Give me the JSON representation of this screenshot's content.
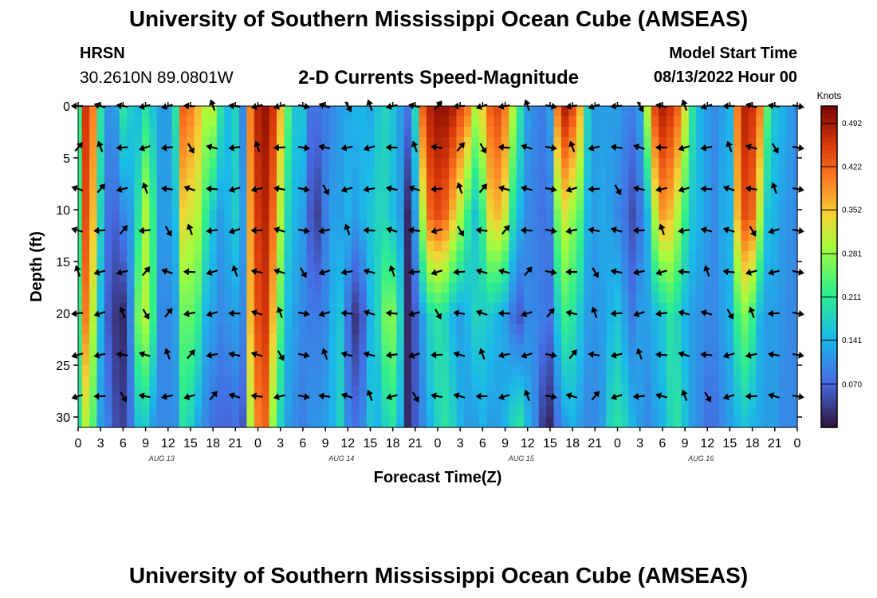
{
  "header": {
    "title": "University of Southern Mississippi Ocean Cube (AMSEAS)",
    "station": "HRSN",
    "coords": "30.2610N  89.0801W",
    "subtitle": "2-D Currents Speed-Magnitude",
    "model_start_label": "Model Start Time",
    "model_start_value": "08/13/2022 Hour 00",
    "footer_title": "University of Southern Mississippi Ocean Cube (AMSEAS)"
  },
  "chart_data": {
    "type": "heatmap",
    "xlabel": "Forecast Time(Z)",
    "ylabel": "Depth (ft)",
    "x_tick_labels": [
      "0",
      "3",
      "6",
      "9",
      "12",
      "15",
      "18",
      "21",
      "0",
      "3",
      "6",
      "9",
      "12",
      "15",
      "18",
      "21",
      "0",
      "3",
      "6",
      "9",
      "12",
      "15",
      "18",
      "21",
      "0",
      "3",
      "6",
      "9",
      "12",
      "15",
      "18",
      "21",
      "0"
    ],
    "x_range_hours": [
      0,
      96
    ],
    "day_labels": [
      {
        "text": "AUG 13",
        "hour": 12
      },
      {
        "text": "AUG 14",
        "hour": 36
      },
      {
        "text": "AUG 15",
        "hour": 60
      },
      {
        "text": "AUG 16",
        "hour": 84
      }
    ],
    "y_ticks": [
      0,
      5,
      10,
      15,
      20,
      25,
      30
    ],
    "y_range_ft": [
      0,
      31
    ],
    "colorbar": {
      "label": "Knots",
      "ticks": [
        "0.492",
        "0.422",
        "0.352",
        "0.281",
        "0.211",
        "0.141",
        "0.070"
      ],
      "range": [
        0,
        0.52
      ]
    },
    "arrow_depths_ft": [
      0,
      4,
      8,
      12,
      16,
      20,
      24,
      28
    ],
    "arrow_hours": [
      0,
      3,
      6,
      9,
      12,
      15,
      18,
      21,
      24,
      27,
      30,
      33,
      36,
      39,
      42,
      45,
      48,
      51,
      54,
      57,
      60,
      63,
      66,
      69,
      72,
      75,
      78,
      81,
      84,
      87,
      90,
      93,
      96
    ],
    "speed_columns_knots": [
      {
        "hour": 0,
        "profile": [
          0.22,
          0.22,
          0.22,
          0.2
        ]
      },
      {
        "hour": 1,
        "profile": [
          0.46,
          0.44,
          0.4,
          0.3
        ]
      },
      {
        "hour": 2,
        "profile": [
          0.4,
          0.36,
          0.3,
          0.24
        ]
      },
      {
        "hour": 3,
        "profile": [
          0.2,
          0.18,
          0.14,
          0.12
        ]
      },
      {
        "hour": 4,
        "profile": [
          0.11,
          0.08,
          0.06,
          0.09
        ]
      },
      {
        "hour": 5,
        "profile": [
          0.12,
          0.07,
          0.03,
          0.05
        ]
      },
      {
        "hour": 6,
        "profile": [
          0.2,
          0.1,
          0.02,
          0.04
        ]
      },
      {
        "hour": 7,
        "profile": [
          0.17,
          0.12,
          0.1,
          0.08
        ]
      },
      {
        "hour": 8,
        "profile": [
          0.15,
          0.2,
          0.26,
          0.16
        ]
      },
      {
        "hour": 9,
        "profile": [
          0.2,
          0.3,
          0.3,
          0.17
        ]
      },
      {
        "hour": 10,
        "profile": [
          0.16,
          0.22,
          0.22,
          0.12
        ]
      },
      {
        "hour": 11,
        "profile": [
          0.12,
          0.12,
          0.1,
          0.1
        ]
      },
      {
        "hour": 12,
        "profile": [
          0.12,
          0.12,
          0.1,
          0.1
        ]
      },
      {
        "hour": 13,
        "profile": [
          0.2,
          0.15,
          0.12,
          0.11
        ]
      },
      {
        "hour": 14,
        "profile": [
          0.42,
          0.34,
          0.25,
          0.2
        ]
      },
      {
        "hour": 15,
        "profile": [
          0.4,
          0.32,
          0.25,
          0.18
        ]
      },
      {
        "hour": 16,
        "profile": [
          0.36,
          0.3,
          0.22,
          0.13
        ]
      },
      {
        "hour": 17,
        "profile": [
          0.3,
          0.22,
          0.14,
          0.1
        ]
      },
      {
        "hour": 18,
        "profile": [
          0.3,
          0.16,
          0.12,
          0.08
        ]
      },
      {
        "hour": 19,
        "profile": [
          0.2,
          0.12,
          0.1,
          0.07
        ]
      },
      {
        "hour": 20,
        "profile": [
          0.15,
          0.14,
          0.11,
          0.07
        ]
      },
      {
        "hour": 21,
        "profile": [
          0.18,
          0.17,
          0.12,
          0.08
        ]
      },
      {
        "hour": 22,
        "profile": [
          0.1,
          0.12,
          0.1,
          0.06
        ]
      },
      {
        "hour": 23,
        "profile": [
          0.4,
          0.38,
          0.36,
          0.3
        ]
      },
      {
        "hour": 24,
        "profile": [
          0.48,
          0.46,
          0.44,
          0.4
        ]
      },
      {
        "hour": 25,
        "profile": [
          0.5,
          0.48,
          0.46,
          0.42
        ]
      },
      {
        "hour": 26,
        "profile": [
          0.46,
          0.42,
          0.36,
          0.28
        ]
      },
      {
        "hour": 27,
        "profile": [
          0.36,
          0.3,
          0.24,
          0.18
        ]
      },
      {
        "hour": 28,
        "profile": [
          0.24,
          0.18,
          0.14,
          0.12
        ]
      },
      {
        "hour": 29,
        "profile": [
          0.16,
          0.14,
          0.12,
          0.1
        ]
      },
      {
        "hour": 30,
        "profile": [
          0.16,
          0.12,
          0.1,
          0.09
        ]
      },
      {
        "hour": 31,
        "profile": [
          0.08,
          0.06,
          0.09,
          0.11
        ]
      },
      {
        "hour": 32,
        "profile": [
          0.08,
          0.04,
          0.09,
          0.11
        ]
      },
      {
        "hour": 33,
        "profile": [
          0.09,
          0.09,
          0.1,
          0.12
        ]
      },
      {
        "hour": 34,
        "profile": [
          0.1,
          0.12,
          0.14,
          0.14
        ]
      },
      {
        "hour": 35,
        "profile": [
          0.12,
          0.12,
          0.16,
          0.18
        ]
      },
      {
        "hour": 36,
        "profile": [
          0.13,
          0.14,
          0.08,
          0.1
        ]
      },
      {
        "hour": 37,
        "profile": [
          0.14,
          0.12,
          0.03,
          0.08
        ]
      },
      {
        "hour": 38,
        "profile": [
          0.14,
          0.14,
          0.06,
          0.1
        ]
      },
      {
        "hour": 39,
        "profile": [
          0.13,
          0.16,
          0.14,
          0.16
        ]
      },
      {
        "hour": 40,
        "profile": [
          0.16,
          0.18,
          0.18,
          0.14
        ]
      },
      {
        "hour": 41,
        "profile": [
          0.18,
          0.18,
          0.26,
          0.18
        ]
      },
      {
        "hour": 42,
        "profile": [
          0.16,
          0.15,
          0.27,
          0.2
        ]
      },
      {
        "hour": 43,
        "profile": [
          0.12,
          0.12,
          0.18,
          0.14
        ]
      },
      {
        "hour": 44,
        "profile": [
          0.08,
          0.02,
          0.02,
          0.02
        ]
      },
      {
        "hour": 45,
        "profile": [
          0.18,
          0.12,
          0.06,
          0.06
        ]
      },
      {
        "hour": 46,
        "profile": [
          0.42,
          0.3,
          0.12,
          0.1
        ]
      },
      {
        "hour": 47,
        "profile": [
          0.48,
          0.42,
          0.18,
          0.14
        ]
      },
      {
        "hour": 48,
        "profile": [
          0.5,
          0.44,
          0.2,
          0.18
        ]
      },
      {
        "hour": 49,
        "profile": [
          0.5,
          0.42,
          0.18,
          0.2
        ]
      },
      {
        "hour": 50,
        "profile": [
          0.48,
          0.36,
          0.14,
          0.18
        ]
      },
      {
        "hour": 51,
        "profile": [
          0.44,
          0.3,
          0.12,
          0.14
        ]
      },
      {
        "hour": 52,
        "profile": [
          0.4,
          0.22,
          0.14,
          0.12
        ]
      },
      {
        "hour": 53,
        "profile": [
          0.3,
          0.16,
          0.18,
          0.12
        ]
      },
      {
        "hour": 54,
        "profile": [
          0.34,
          0.22,
          0.17,
          0.14
        ]
      },
      {
        "hour": 55,
        "profile": [
          0.42,
          0.34,
          0.16,
          0.12
        ]
      },
      {
        "hour": 56,
        "profile": [
          0.44,
          0.36,
          0.14,
          0.12
        ]
      },
      {
        "hour": 57,
        "profile": [
          0.4,
          0.32,
          0.12,
          0.14
        ]
      },
      {
        "hour": 58,
        "profile": [
          0.3,
          0.2,
          0.08,
          0.18
        ]
      },
      {
        "hour": 59,
        "profile": [
          0.2,
          0.14,
          0.06,
          0.2
        ]
      },
      {
        "hour": 60,
        "profile": [
          0.12,
          0.1,
          0.1,
          0.14
        ]
      },
      {
        "hour": 61,
        "profile": [
          0.1,
          0.09,
          0.1,
          0.1
        ]
      },
      {
        "hour": 62,
        "profile": [
          0.09,
          0.08,
          0.09,
          0.04
        ]
      },
      {
        "hour": 63,
        "profile": [
          0.12,
          0.09,
          0.08,
          0.02
        ]
      },
      {
        "hour": 64,
        "profile": [
          0.4,
          0.26,
          0.16,
          0.08
        ]
      },
      {
        "hour": 65,
        "profile": [
          0.48,
          0.32,
          0.22,
          0.12
        ]
      },
      {
        "hour": 66,
        "profile": [
          0.44,
          0.28,
          0.2,
          0.14
        ]
      },
      {
        "hour": 67,
        "profile": [
          0.36,
          0.24,
          0.16,
          0.12
        ]
      },
      {
        "hour": 68,
        "profile": [
          0.18,
          0.14,
          0.12,
          0.1
        ]
      },
      {
        "hour": 69,
        "profile": [
          0.12,
          0.12,
          0.11,
          0.1
        ]
      },
      {
        "hour": 70,
        "profile": [
          0.12,
          0.13,
          0.12,
          0.12
        ]
      },
      {
        "hour": 71,
        "profile": [
          0.12,
          0.12,
          0.14,
          0.18
        ]
      },
      {
        "hour": 72,
        "profile": [
          0.12,
          0.1,
          0.16,
          0.2
        ]
      },
      {
        "hour": 73,
        "profile": [
          0.1,
          0.08,
          0.12,
          0.18
        ]
      },
      {
        "hour": 74,
        "profile": [
          0.09,
          0.05,
          0.09,
          0.14
        ]
      },
      {
        "hour": 75,
        "profile": [
          0.12,
          0.08,
          0.12,
          0.12
        ]
      },
      {
        "hour": 76,
        "profile": [
          0.3,
          0.14,
          0.12,
          0.1
        ]
      },
      {
        "hour": 77,
        "profile": [
          0.44,
          0.3,
          0.14,
          0.12
        ]
      },
      {
        "hour": 78,
        "profile": [
          0.48,
          0.38,
          0.16,
          0.14
        ]
      },
      {
        "hour": 79,
        "profile": [
          0.46,
          0.36,
          0.2,
          0.18
        ]
      },
      {
        "hour": 80,
        "profile": [
          0.42,
          0.3,
          0.18,
          0.2
        ]
      },
      {
        "hour": 81,
        "profile": [
          0.32,
          0.22,
          0.14,
          0.16
        ]
      },
      {
        "hour": 82,
        "profile": [
          0.2,
          0.16,
          0.12,
          0.12
        ]
      },
      {
        "hour": 83,
        "profile": [
          0.14,
          0.14,
          0.11,
          0.1
        ]
      },
      {
        "hour": 84,
        "profile": [
          0.12,
          0.12,
          0.1,
          0.08
        ]
      },
      {
        "hour": 85,
        "profile": [
          0.1,
          0.1,
          0.1,
          0.08
        ]
      },
      {
        "hour": 86,
        "profile": [
          0.12,
          0.13,
          0.12,
          0.1
        ]
      },
      {
        "hour": 87,
        "profile": [
          0.14,
          0.14,
          0.14,
          0.12
        ]
      },
      {
        "hour": 88,
        "profile": [
          0.4,
          0.36,
          0.22,
          0.14
        ]
      },
      {
        "hour": 89,
        "profile": [
          0.48,
          0.44,
          0.26,
          0.16
        ]
      },
      {
        "hour": 90,
        "profile": [
          0.46,
          0.42,
          0.22,
          0.14
        ]
      },
      {
        "hour": 91,
        "profile": [
          0.4,
          0.3,
          0.14,
          0.13
        ]
      },
      {
        "hour": 92,
        "profile": [
          0.24,
          0.16,
          0.12,
          0.12
        ]
      },
      {
        "hour": 93,
        "profile": [
          0.16,
          0.14,
          0.12,
          0.12
        ]
      },
      {
        "hour": 94,
        "profile": [
          0.14,
          0.12,
          0.11,
          0.1
        ]
      },
      {
        "hour": 95,
        "profile": [
          0.12,
          0.11,
          0.1,
          0.1
        ]
      },
      {
        "hour": 96,
        "profile": [
          0.1,
          0.1,
          0.1,
          0.1
        ]
      }
    ]
  }
}
